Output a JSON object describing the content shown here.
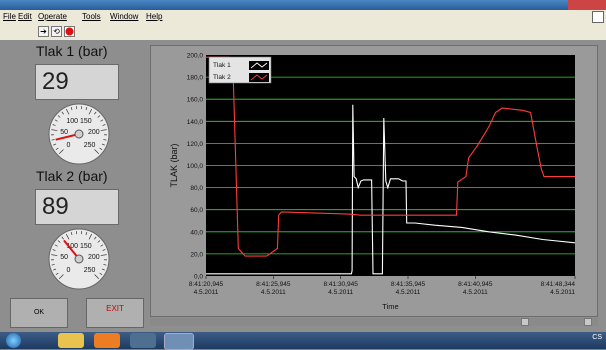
{
  "menu": {
    "items": [
      "File",
      "Edit",
      "Operate",
      "Tools",
      "Window",
      "Help"
    ]
  },
  "toolbar": {
    "run_arrow_icon": "arrow-right-icon",
    "run_continuous_icon": "loop-arrows-icon",
    "abort_icon": "stop-circle-icon"
  },
  "indicators": {
    "tlak1": {
      "label": "Tlak 1 (bar)",
      "value": "29"
    },
    "tlak2": {
      "label": "Tlak 2 (bar)",
      "value": "89"
    }
  },
  "gauges": {
    "ticks": [
      "0",
      "50",
      "100",
      "150",
      "200",
      "250"
    ],
    "g1": {
      "value": 29,
      "max": 250
    },
    "g2": {
      "value": 89,
      "max": 250
    }
  },
  "buttons": {
    "ok": "OK",
    "exit": "EXIT"
  },
  "chart_data": {
    "type": "line",
    "ylabel": "TLAK (bar)",
    "xlabel": "Time",
    "ylim": [
      0,
      200
    ],
    "xlim": [
      0,
      27.4
    ],
    "y_ticks": [
      "0,0",
      "20,0",
      "40,0",
      "60,0",
      "80,0",
      "100,0",
      "120,0",
      "140,0",
      "160,0",
      "180,0",
      "200,0"
    ],
    "x_ticks": [
      {
        "t": 0,
        "time": "8:41:20,945",
        "date": "4.5.2011"
      },
      {
        "t": 5,
        "time": "8:41:25,945",
        "date": "4.5.2011"
      },
      {
        "t": 10,
        "time": "8:41:30,945",
        "date": "4.5.2011"
      },
      {
        "t": 15,
        "time": "8:41:35,945",
        "date": "4.5.2011"
      },
      {
        "t": 20,
        "time": "8:41:40,945",
        "date": "4.5.2011"
      },
      {
        "t": 27.4,
        "time": "8:41:48,344",
        "date": "4.5.2011"
      }
    ],
    "legend": {
      "placement": "top-left",
      "entries": [
        "Tlak 1",
        "Tlak 2"
      ]
    },
    "colors": {
      "tlak1": "#ffffff",
      "tlak2": "#ff3b3b",
      "grid": "#3ad23a",
      "plot_bg": "#000000"
    },
    "series": [
      {
        "name": "Tlak 1",
        "points": [
          [
            0,
            2
          ],
          [
            5,
            2
          ],
          [
            10.8,
            2
          ],
          [
            10.85,
            5
          ],
          [
            10.9,
            155
          ],
          [
            11.0,
            90
          ],
          [
            11.15,
            88
          ],
          [
            11.3,
            80
          ],
          [
            11.5,
            86
          ],
          [
            11.7,
            87
          ],
          [
            12.3,
            87
          ],
          [
            12.4,
            2
          ],
          [
            13.1,
            2
          ],
          [
            13.2,
            143
          ],
          [
            13.35,
            86
          ],
          [
            13.5,
            80
          ],
          [
            13.7,
            88
          ],
          [
            14.3,
            88
          ],
          [
            14.6,
            86
          ],
          [
            14.85,
            86
          ],
          [
            14.9,
            48
          ],
          [
            15.5,
            48
          ],
          [
            17,
            46
          ],
          [
            19,
            44
          ],
          [
            21,
            40
          ],
          [
            23,
            37
          ],
          [
            25,
            33
          ],
          [
            27.4,
            30
          ]
        ]
      },
      {
        "name": "Tlak 2",
        "points": [
          [
            0,
            198
          ],
          [
            1.7,
            198
          ],
          [
            2.0,
            190
          ],
          [
            2.4,
            25
          ],
          [
            2.9,
            18
          ],
          [
            4.5,
            18
          ],
          [
            5.3,
            25
          ],
          [
            5.4,
            55
          ],
          [
            5.6,
            58
          ],
          [
            10.6,
            56
          ],
          [
            11.5,
            55
          ],
          [
            18.6,
            55
          ],
          [
            18.7,
            85
          ],
          [
            19.3,
            90
          ],
          [
            19.5,
            107
          ],
          [
            20.1,
            117
          ],
          [
            20.5,
            125
          ],
          [
            21.0,
            135
          ],
          [
            21.5,
            148
          ],
          [
            22.0,
            152
          ],
          [
            23.5,
            150
          ],
          [
            24.1,
            148
          ],
          [
            24.6,
            115
          ],
          [
            24.9,
            97
          ],
          [
            25.1,
            90
          ],
          [
            27.4,
            90
          ]
        ]
      }
    ]
  }
}
